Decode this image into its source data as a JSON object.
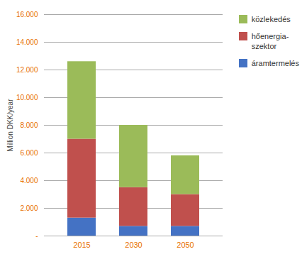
{
  "chart_data": {
    "type": "bar",
    "stacked": true,
    "categories": [
      "2015",
      "2030",
      "2050"
    ],
    "series": [
      {
        "name": "áramtermelés",
        "color": "#4472C4",
        "values": [
          1300,
          700,
          700
        ]
      },
      {
        "name": "hőenergia-\nszektor",
        "color": "#C0504D",
        "values": [
          5700,
          2800,
          2300
        ]
      },
      {
        "name": "közlekedés",
        "color": "#9BBB59",
        "values": [
          5600,
          4500,
          2800
        ]
      }
    ],
    "ylabel": "Million DKK/year",
    "ylim": [
      0,
      16000
    ],
    "yticks": [
      {
        "value": 0,
        "label": "-"
      },
      {
        "value": 2000,
        "label": "2.000"
      },
      {
        "value": 4000,
        "label": "4.000"
      },
      {
        "value": 6000,
        "label": "6.000"
      },
      {
        "value": 8000,
        "label": "8.000"
      },
      {
        "value": 10000,
        "label": "10.000"
      },
      {
        "value": 12000,
        "label": "12.000"
      },
      {
        "value": 14000,
        "label": "14.000"
      },
      {
        "value": 16000,
        "label": "16.000"
      }
    ],
    "grid": true,
    "legend": "upper right"
  }
}
